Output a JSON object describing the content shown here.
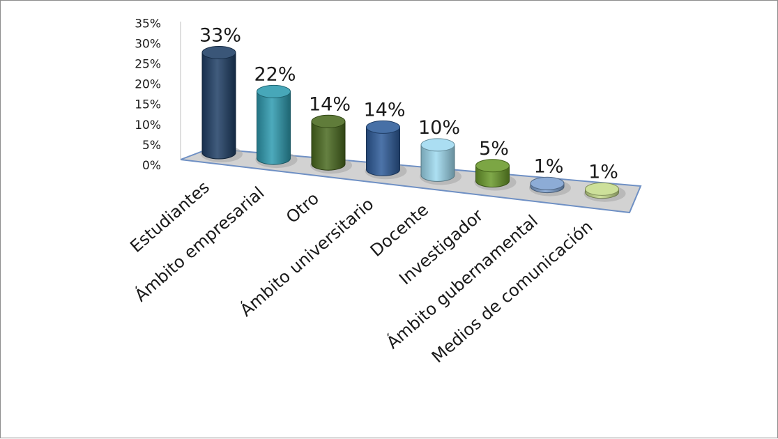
{
  "chart_data": {
    "type": "bar",
    "categories": [
      "Estudiantes",
      "Ámbito empresarial",
      "Otro",
      "Ámbito universitario",
      "Docente",
      "Investigador",
      "Ámbito gubernamental",
      "Medios de comunicación"
    ],
    "values": [
      33,
      22,
      14,
      14,
      10,
      5,
      1,
      1
    ],
    "data_labels": [
      "33%",
      "22%",
      "14%",
      "14%",
      "10%",
      "5%",
      "1%",
      "1%"
    ],
    "yticks": [
      "0%",
      "5%",
      "10%",
      "15%",
      "20%",
      "25%",
      "30%",
      "35%"
    ],
    "ylim": [
      0,
      35
    ],
    "grid": false,
    "legend": "none",
    "colors": [
      "#1f3f66",
      "#2e9bb0",
      "#4a6a1f",
      "#2e5c9a",
      "#9fdaf0",
      "#6a9a2a",
      "#7ea1d0",
      "#c6dc8c"
    ]
  }
}
